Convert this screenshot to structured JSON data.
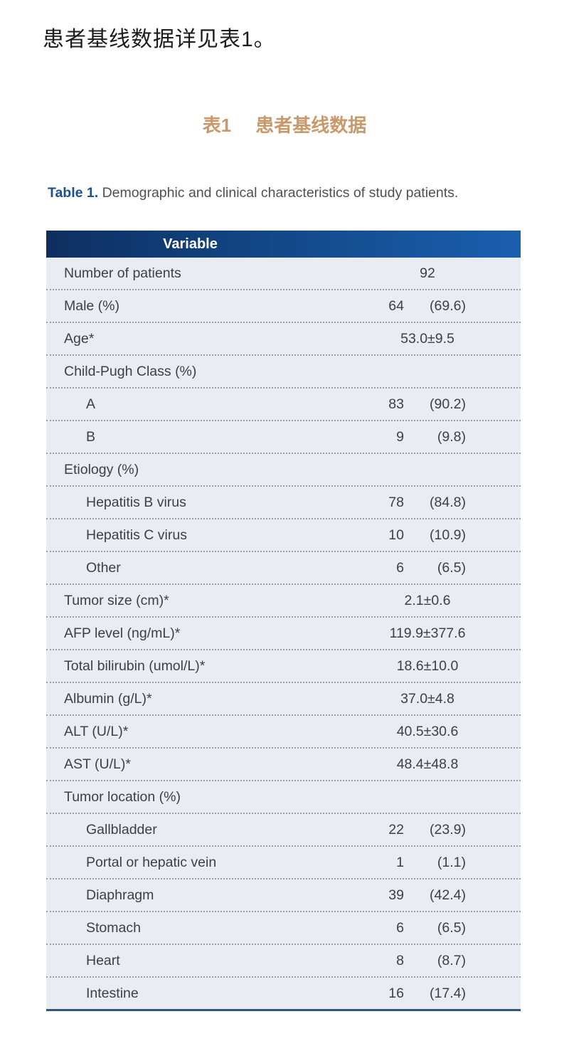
{
  "page": {
    "intro_text": "患者基线数据详见表1。",
    "caption_zh": {
      "label": "表1",
      "title": "患者基线数据"
    },
    "caption_en": {
      "label": "Table 1.",
      "text": " Demographic and clinical characteristics of study patients."
    }
  },
  "colors": {
    "header_gradient_left": "#0d2f5f",
    "header_gradient_right": "#1a5fae",
    "body_background": "#e9ecf2",
    "bottom_border": "#31567e",
    "caption_zh_color": "#c8996b",
    "caption_en_label_color": "#1d4e8f",
    "text_color": "#3b4049"
  },
  "table": {
    "header": "Variable",
    "rows": [
      {
        "label": "Number of patients",
        "indent": false,
        "value": "92"
      },
      {
        "label": "Male (%)",
        "indent": false,
        "count": "64",
        "pct": "(69.6)"
      },
      {
        "label": "Age*",
        "indent": false,
        "value": "53.0±9.5"
      },
      {
        "label": "Child-Pugh Class (%)",
        "indent": false
      },
      {
        "label": "A",
        "indent": true,
        "count": "83",
        "pct": "(90.2)"
      },
      {
        "label": "B",
        "indent": true,
        "count": "9",
        "pct": "(9.8)"
      },
      {
        "label": "Etiology (%)",
        "indent": false
      },
      {
        "label": "Hepatitis B virus",
        "indent": true,
        "count": "78",
        "pct": "(84.8)"
      },
      {
        "label": "Hepatitis C virus",
        "indent": true,
        "count": "10",
        "pct": "(10.9)"
      },
      {
        "label": "Other",
        "indent": true,
        "count": "6",
        "pct": "(6.5)"
      },
      {
        "label": "Tumor size (cm)*",
        "indent": false,
        "value": "2.1±0.6"
      },
      {
        "label": "AFP level (ng/mL)*",
        "indent": false,
        "value": "119.9±377.6"
      },
      {
        "label": "Total bilirubin (umol/L)*",
        "indent": false,
        "value": "18.6±10.0"
      },
      {
        "label": "Albumin (g/L)*",
        "indent": false,
        "value": "37.0±4.8"
      },
      {
        "label": "ALT (U/L)*",
        "indent": false,
        "value": "40.5±30.6"
      },
      {
        "label": "AST (U/L)*",
        "indent": false,
        "value": "48.4±48.8"
      },
      {
        "label": "Tumor location (%)",
        "indent": false
      },
      {
        "label": "Gallbladder",
        "indent": true,
        "count": "22",
        "pct": "(23.9)"
      },
      {
        "label": "Portal or hepatic vein",
        "indent": true,
        "count": "1",
        "pct": "(1.1)"
      },
      {
        "label": "Diaphragm",
        "indent": true,
        "count": "39",
        "pct": "(42.4)"
      },
      {
        "label": "Stomach",
        "indent": true,
        "count": "6",
        "pct": "(6.5)"
      },
      {
        "label": "Heart",
        "indent": true,
        "count": "8",
        "pct": "(8.7)"
      },
      {
        "label": "Intestine",
        "indent": true,
        "count": "16",
        "pct": "(17.4)"
      }
    ]
  }
}
